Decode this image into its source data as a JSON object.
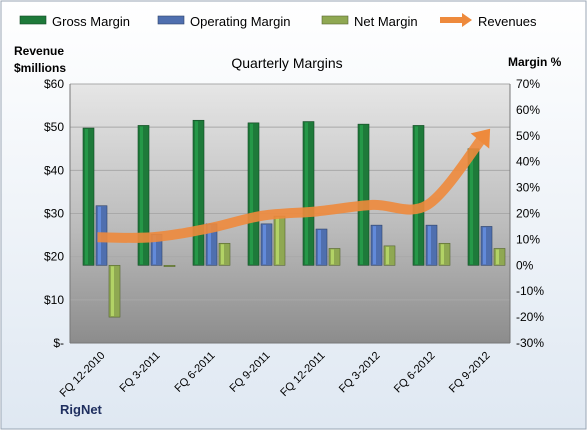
{
  "chart_data": {
    "type": "bar",
    "title": "Quarterly Margins",
    "source_label": "RigNet",
    "left_axis_label_line1": "Revenue",
    "left_axis_label_line2": "$millions",
    "right_axis_label": "Margin %",
    "categories": [
      "FQ 12-2010",
      "FQ 3-2011",
      "FQ 6-2011",
      "FQ 9-2011",
      "FQ 12-2011",
      "FQ 3-2012",
      "FQ 6-2012",
      "FQ 9-2012"
    ],
    "left_axis": {
      "ticks": [
        "$-",
        "$10",
        "$20",
        "$30",
        "$40",
        "$50",
        "$60"
      ],
      "values": [
        0,
        10,
        20,
        30,
        40,
        50,
        60
      ],
      "range": [
        0,
        60
      ]
    },
    "right_axis": {
      "ticks": [
        "-30%",
        "-20%",
        "-10%",
        "0%",
        "10%",
        "20%",
        "30%",
        "40%",
        "50%",
        "60%",
        "70%"
      ],
      "values": [
        -30,
        -20,
        -10,
        0,
        10,
        20,
        30,
        40,
        50,
        60,
        70
      ],
      "range": [
        -30,
        70
      ]
    },
    "series": [
      {
        "name": "Gross Margin",
        "kind": "bar",
        "axis": "right",
        "color": "#1e7a3a",
        "values": [
          53,
          54,
          56,
          55,
          55.5,
          54.5,
          54,
          45
        ]
      },
      {
        "name": "Operating Margin",
        "kind": "bar",
        "axis": "right",
        "color": "#4f6faf",
        "values": [
          23,
          12,
          16,
          16,
          14,
          15.5,
          15.5,
          15
        ]
      },
      {
        "name": "Net Margin",
        "kind": "bar",
        "axis": "right",
        "color": "#8fa852",
        "values": [
          -20,
          -0.5,
          8.5,
          19,
          6.5,
          7.5,
          8.5,
          6.5
        ]
      },
      {
        "name": "Revenues",
        "kind": "line",
        "axis": "left",
        "color": "#ee8a3c",
        "values": [
          24.5,
          24.5,
          26.5,
          29.5,
          30.5,
          32,
          32,
          47.5
        ]
      }
    ],
    "grid": true,
    "legend_position": "top"
  }
}
